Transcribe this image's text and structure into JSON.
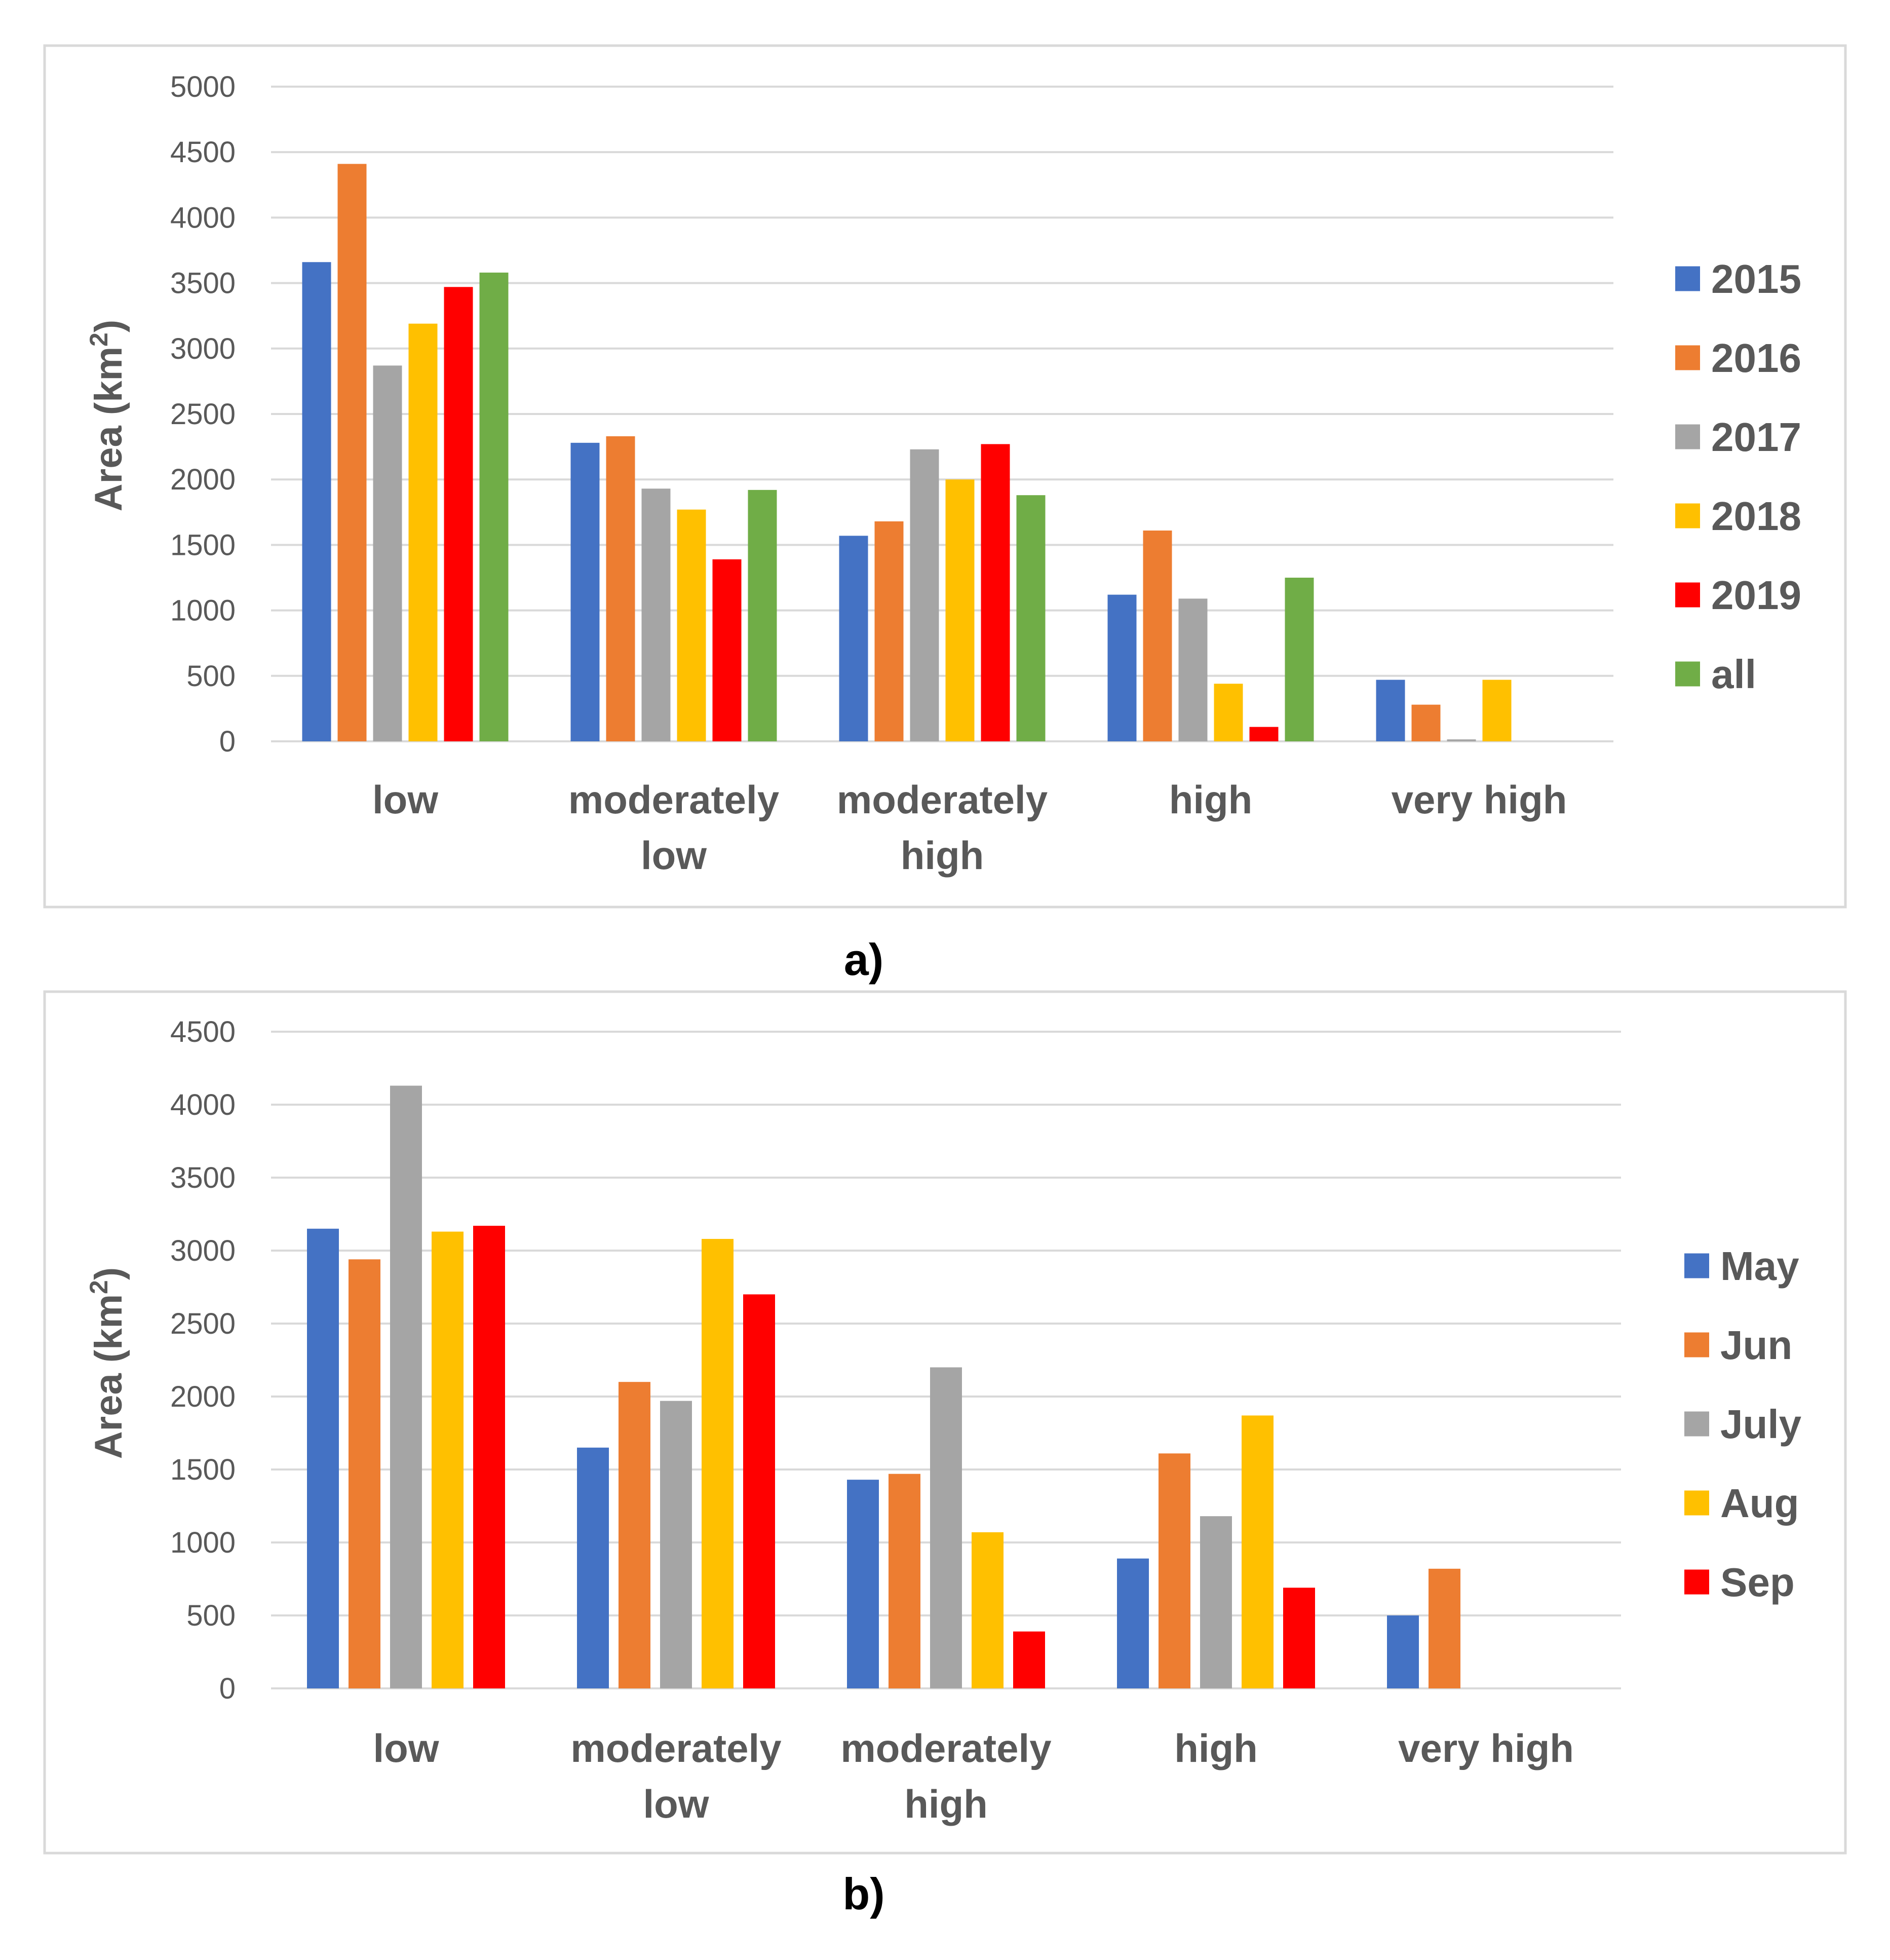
{
  "chart_data": [
    {
      "type": "bar",
      "panel_label": "a)",
      "ylabel": "Area (km",
      "ylabel_sup": "2",
      "ylabel_close": ")",
      "ylim": [
        0,
        5000
      ],
      "yticks": [
        "0",
        "500",
        "1000",
        "1500",
        "2000",
        "2500",
        "3000",
        "3500",
        "4000",
        "4500",
        "5000"
      ],
      "categories": [
        [
          "low"
        ],
        [
          "moderately",
          "low"
        ],
        [
          "moderately",
          "high"
        ],
        [
          "high"
        ],
        [
          "very high"
        ]
      ],
      "series": [
        {
          "name": "2015",
          "color": "#4472C4",
          "values": [
            3660,
            2280,
            1570,
            1120,
            470
          ]
        },
        {
          "name": "2016",
          "color": "#ED7D31",
          "values": [
            4410,
            2330,
            1680,
            1610,
            280
          ]
        },
        {
          "name": "2017",
          "color": "#A5A5A5",
          "values": [
            2870,
            1930,
            2230,
            1090,
            15
          ]
        },
        {
          "name": "2018",
          "color": "#FFC000",
          "values": [
            3190,
            1770,
            2000,
            440,
            470
          ]
        },
        {
          "name": "2019",
          "color": "#FF0000",
          "values": [
            3470,
            1390,
            2270,
            110,
            0
          ]
        },
        {
          "name": "all",
          "color": "#70AD47",
          "values": [
            3580,
            1920,
            1880,
            1250,
            0
          ]
        }
      ]
    },
    {
      "type": "bar",
      "panel_label": "b)",
      "ylabel": "Area (km",
      "ylabel_sup": "2",
      "ylabel_close": ")",
      "ylim": [
        0,
        4500
      ],
      "yticks": [
        "0",
        "500",
        "1000",
        "1500",
        "2000",
        "2500",
        "3000",
        "3500",
        "4000",
        "4500"
      ],
      "categories": [
        [
          "low"
        ],
        [
          "moderately",
          "low"
        ],
        [
          "moderately",
          "high"
        ],
        [
          "high"
        ],
        [
          "very high"
        ]
      ],
      "series": [
        {
          "name": "May",
          "color": "#4472C4",
          "values": [
            3150,
            1650,
            1430,
            890,
            500
          ]
        },
        {
          "name": "Jun",
          "color": "#ED7D31",
          "values": [
            2940,
            2100,
            1470,
            1610,
            820
          ]
        },
        {
          "name": "July",
          "color": "#A5A5A5",
          "values": [
            4130,
            1970,
            2200,
            1180,
            0
          ]
        },
        {
          "name": "Aug",
          "color": "#FFC000",
          "values": [
            3130,
            3080,
            1070,
            1870,
            0
          ]
        },
        {
          "name": "Sep",
          "color": "#FF0000",
          "values": [
            3170,
            2700,
            390,
            690,
            0
          ]
        }
      ]
    }
  ]
}
